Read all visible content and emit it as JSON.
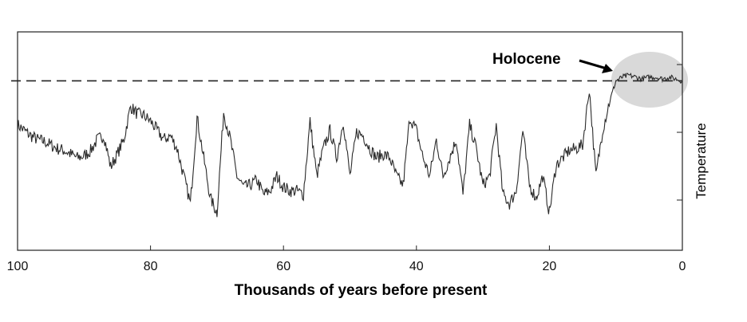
{
  "chart_data": {
    "type": "line",
    "title": "",
    "xlabel": "Thousands of years before present",
    "ylabel": "Temperature",
    "xlim": [
      100,
      0
    ],
    "ylim": [
      0,
      100
    ],
    "x_ticks": [
      "100",
      "80",
      "60",
      "40",
      "20",
      "0"
    ],
    "x_tick_values": [
      100,
      80,
      60,
      40,
      20,
      0
    ],
    "y_ticks_shown": false,
    "grid": false,
    "reference_line": {
      "style": "dashed",
      "value": 82
    },
    "annotation": {
      "text": "Holocene",
      "x_range": [
        0,
        11
      ]
    },
    "series": [
      {
        "x": [
          100,
          99,
          98,
          97,
          96,
          95,
          94,
          93,
          92,
          91,
          90,
          89,
          88,
          87,
          86,
          85,
          84,
          83,
          82,
          81,
          80,
          79,
          78,
          77,
          76,
          75,
          74,
          73,
          72,
          71,
          70,
          69,
          68,
          67,
          66,
          65,
          64,
          63,
          62,
          61,
          60,
          59,
          58,
          57,
          56,
          55,
          54,
          53,
          52,
          51,
          50,
          49,
          48,
          47,
          46,
          45,
          44,
          43,
          42,
          41,
          40,
          39,
          38,
          37,
          36,
          35,
          34,
          33,
          32,
          31,
          30,
          29,
          28,
          27,
          26,
          25,
          24,
          23,
          22,
          21,
          20,
          19,
          18,
          17,
          16,
          15,
          14,
          13,
          12,
          11,
          10,
          9,
          8,
          7,
          6,
          5,
          4,
          3,
          2,
          1,
          0
        ],
        "values": [
          58,
          55,
          52,
          50,
          49,
          47,
          45,
          44,
          42,
          40,
          41,
          44,
          50,
          52,
          35,
          42,
          50,
          68,
          64,
          63,
          60,
          55,
          50,
          52,
          45,
          30,
          15,
          62,
          40,
          18,
          10,
          65,
          50,
          30,
          24,
          25,
          28,
          20,
          22,
          30,
          24,
          22,
          22,
          20,
          60,
          30,
          45,
          55,
          40,
          60,
          30,
          54,
          52,
          45,
          40,
          42,
          40,
          30,
          25,
          62,
          55,
          40,
          30,
          50,
          30,
          40,
          50,
          20,
          58,
          45,
          25,
          30,
          58,
          20,
          15,
          22,
          55,
          25,
          18,
          30,
          10,
          36,
          40,
          44,
          45,
          47,
          78,
          30,
          55,
          70,
          82,
          84,
          85,
          84,
          83,
          84,
          84,
          83,
          84,
          83,
          82
        ]
      }
    ]
  }
}
